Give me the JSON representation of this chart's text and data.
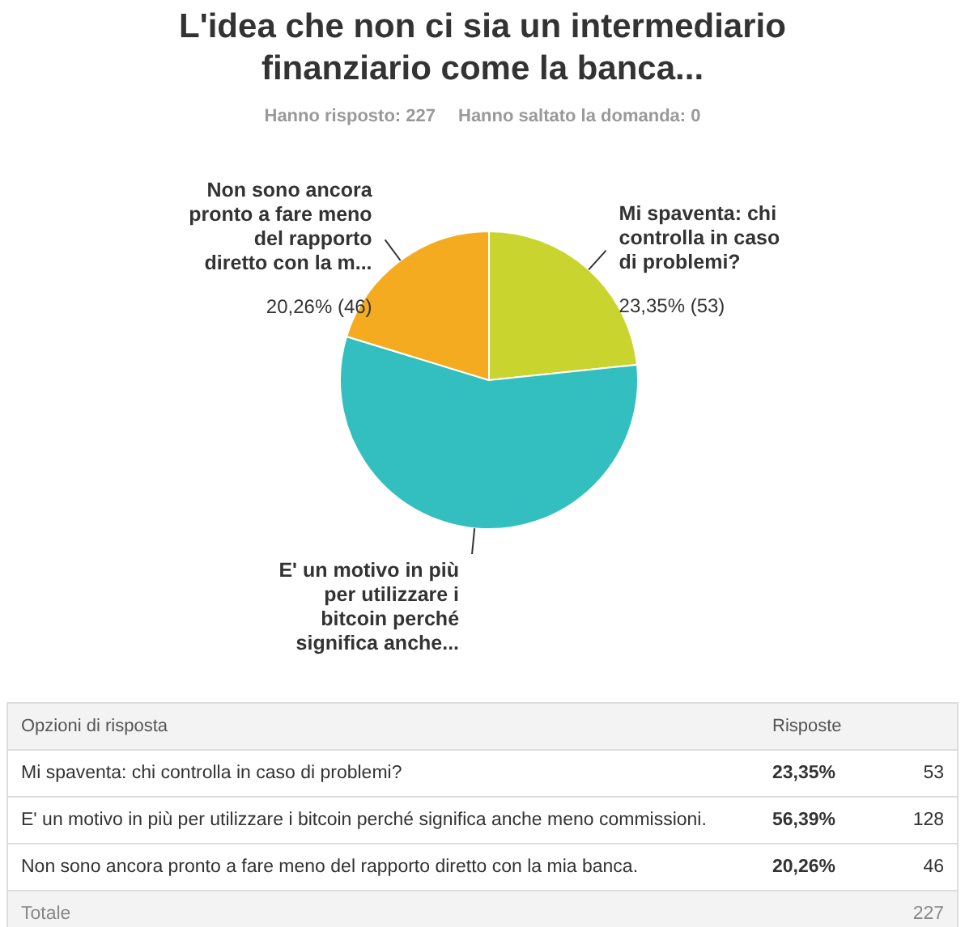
{
  "chart_data": {
    "type": "pie",
    "title": "L'idea che non ci sia un intermediario finanziario come la banca...",
    "subtitle": "Hanno risposto: 227",
    "categories": [
      "Mi spaventa: chi controlla in caso di problemi?",
      "E' un motivo in più per utilizzare i bitcoin perché significa anche...",
      "Non sono ancora pronto a fare meno del rapporto diretto con la m..."
    ],
    "values": [
      23.35,
      56.39,
      20.26
    ],
    "colors": [
      "#c9d52e",
      "#33bfbf",
      "#f5ab1f"
    ],
    "value_labels": [
      "23,35% (53)",
      null,
      "20,26% (46)"
    ],
    "legend": false,
    "annotations": [
      "Hanno saltato la domanda: 0",
      "Opzioni di risposta",
      "Risposte",
      "Mi spaventa: chi controlla in caso di problemi?",
      "23,35%",
      "53",
      "E' un motivo in più per utilizzare i bitcoin perché significa anche meno commissioni.",
      "56,39%",
      "128",
      "Non sono ancora pronto a fare meno del rapporto diretto con la mia banca.",
      "20,26%",
      "46",
      "Totale",
      "227"
    ]
  }
}
